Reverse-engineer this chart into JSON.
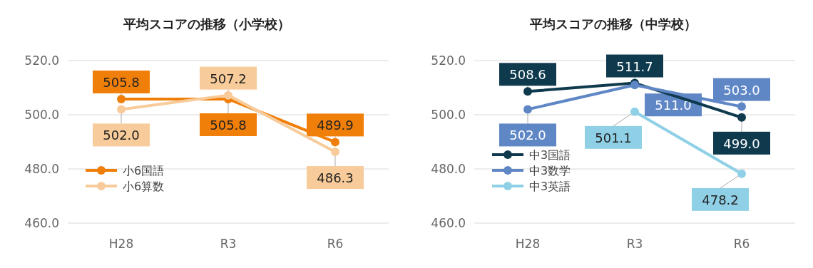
{
  "chart_data": [
    {
      "type": "line",
      "title": "平均スコアの推移（小学校）",
      "categories": [
        "H28",
        "R3",
        "R6"
      ],
      "ylim": [
        460,
        520
      ],
      "yticks": [
        {
          "value": 460,
          "label": "460.0"
        },
        {
          "value": 480,
          "label": "480.0"
        },
        {
          "value": 500,
          "label": "500.0"
        },
        {
          "value": 520,
          "label": "520.0"
        }
      ],
      "grid": "y",
      "legend": "bottom left",
      "marker": "circle",
      "data_labels": true,
      "series": [
        {
          "name": "小6国語",
          "color": "#f07f09",
          "values": [
            505.8,
            505.8,
            489.9
          ],
          "value_labels": [
            "505.8",
            "505.8",
            "489.9"
          ]
        },
        {
          "name": "小6算数",
          "color": "#f8cb9a",
          "values": [
            502.0,
            507.2,
            486.3
          ],
          "value_labels": [
            "502.0",
            "507.2",
            "486.3"
          ]
        }
      ]
    },
    {
      "type": "line",
      "title": "平均スコアの推移（中学校）",
      "categories": [
        "H28",
        "R3",
        "R6"
      ],
      "ylim": [
        460,
        520
      ],
      "yticks": [
        {
          "value": 460,
          "label": "460.0"
        },
        {
          "value": 480,
          "label": "480.0"
        },
        {
          "value": 500,
          "label": "500.0"
        },
        {
          "value": 520,
          "label": "520.0"
        }
      ],
      "grid": "y",
      "legend": "bottom left",
      "marker": "circle",
      "data_labels": true,
      "series": [
        {
          "name": "中3国語",
          "color": "#0f3a4e",
          "values": [
            508.6,
            511.7,
            499.0
          ],
          "value_labels": [
            "508.6",
            "511.7",
            "499.0"
          ]
        },
        {
          "name": "中3数学",
          "color": "#5f87c6",
          "values": [
            502.0,
            511.0,
            503.0
          ],
          "value_labels": [
            "502.0",
            "511.0",
            "503.0"
          ]
        },
        {
          "name": "中3英語",
          "color": "#8fd0e6",
          "values": [
            null,
            501.1,
            478.2
          ],
          "value_labels": [
            null,
            "501.1",
            "478.2"
          ]
        }
      ]
    }
  ]
}
